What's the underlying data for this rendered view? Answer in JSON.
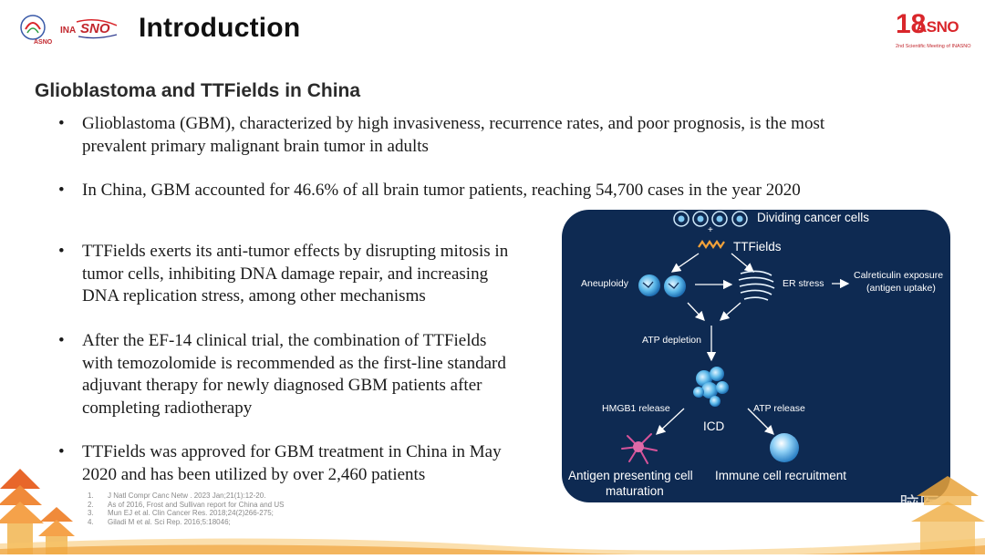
{
  "header": {
    "title": "Introduction",
    "logo_left_1": "ASNO",
    "logo_left_2": "INASNO",
    "logo_right_number": "18",
    "logo_right_word": "ASNO",
    "logo_right_tagline": "2nd Scientific Meeting of INASNO"
  },
  "section_heading": "Glioblastoma and TTFields in China",
  "bullets": [
    {
      "lines": [
        "Glioblastoma (GBM), characterized by high invasiveness, recurrence rates, and poor prognosis, is the most",
        "prevalent primary malignant brain tumor in adults"
      ]
    },
    {
      "lines": [
        "In China, GBM accounted for 46.6% of all brain tumor patients, reaching 54,700 cases in the year 2020"
      ]
    },
    {
      "lines": [
        "TTFields exerts its anti-tumor effects by disrupting mitosis in",
        "tumor cells, inhibiting DNA damage repair, and increasing",
        "DNA replication stress, among other mechanisms"
      ]
    },
    {
      "lines": [
        "After the EF-14 clinical trial, the combination of TTFields",
        "with temozolomide is recommended as the first-line standard",
        "adjuvant therapy for newly diagnosed GBM patients after",
        "completing radiotherapy"
      ]
    },
    {
      "lines": [
        "TTFields was approved for GBM treatment in China in May",
        "2020 and has been utilized by over 2,460 patients"
      ]
    }
  ],
  "references": [
    {
      "num": "1.",
      "text": "J Natl Compr Canc Netw . 2023 Jan;21(1):12-20."
    },
    {
      "num": "2.",
      "text": "As of 2016, Frost and Sullivan report for China and US"
    },
    {
      "num": "3.",
      "text": "Mun EJ et al.   Clin Cancer Res. 2018;24(2)266-275;"
    },
    {
      "num": "4.",
      "text": "Giladi M et al.   Sci Rep. 2016;5:18046;"
    }
  ],
  "diagram": {
    "dividing_cells": "Dividing cancer cells",
    "plus": "+",
    "ttfields": "TTFields",
    "aneuploidy": "Aneuploidy",
    "er_stress": "ER stress",
    "calreticulin_1": "Calreticulin exposure",
    "calreticulin_2": "(antigen uptake)",
    "atp_depletion": "ATP depletion",
    "hmgb1": "HMGB1 release",
    "atp_release": "ATP release",
    "icd": "ICD",
    "apc_1": "Antigen presenting cell",
    "apc_2": "maturation",
    "immune": "Immune cell recruitment"
  },
  "watermark": "脑医汇"
}
